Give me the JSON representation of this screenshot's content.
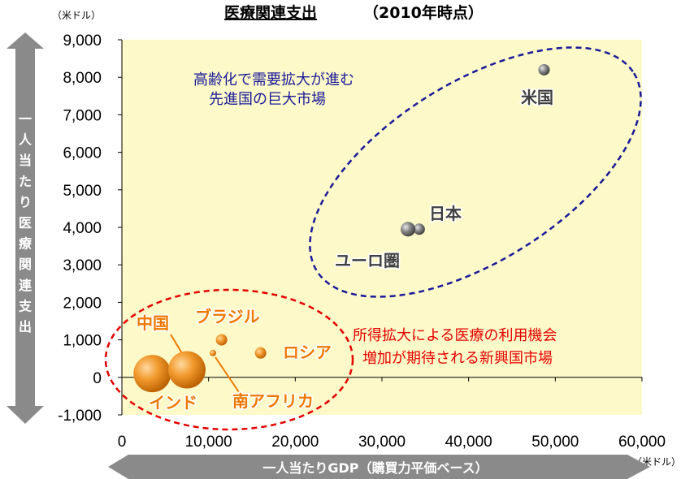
{
  "title": "医療関連支出",
  "title_suffix": "（2010年時点）",
  "y_unit": "（米ドル）",
  "x_unit": "（米ドル）",
  "y_axis_title": [
    "一",
    "人",
    "当",
    "た",
    "り",
    "医",
    "療",
    "関",
    "連",
    "支",
    "出"
  ],
  "x_axis_title": "一人当たりGDP（購買力平価ベース）",
  "annotations": {
    "developed_line1": "高齢化で需要拡大が進む",
    "developed_line2": "先進国の巨大市場",
    "emerging_line1": "所得拡大による医療の利用機会",
    "emerging_line2": "増加が期待される新興国市場"
  },
  "colors": {
    "plot_bg": "#fdf9c8",
    "emerging": "#e98a1b",
    "developed": "#707070",
    "ellipse_blue": "#1a1a9a",
    "ellipse_red": "#e60000",
    "axis_arrow": "#8a8a8a"
  },
  "chart_data": {
    "type": "scatter",
    "title": "医療関連支出（2010年時点）",
    "xlabel": "一人当たりGDP（購買力平価ベース）",
    "ylabel": "一人当たり医療関連支出",
    "xlim": [
      0,
      60000
    ],
    "ylim": [
      -1000,
      9000
    ],
    "x_ticks": [
      "0",
      "10,000",
      "20,000",
      "30,000",
      "40,000",
      "50,000",
      "60,000"
    ],
    "y_ticks": [
      "9,000",
      "8,000",
      "7,000",
      "6,000",
      "5,000",
      "4,000",
      "3,000",
      "2,000",
      "1,000",
      "0",
      "-1,000"
    ],
    "grid": false,
    "points": [
      {
        "label": "インド",
        "x": 3500,
        "y": 100,
        "size": "large",
        "group": "emerging"
      },
      {
        "label": "中国",
        "x": 7500,
        "y": 200,
        "size": "large",
        "group": "emerging"
      },
      {
        "label": "ブラジル",
        "x": 11500,
        "y": 1000,
        "size": "small",
        "group": "emerging"
      },
      {
        "label": "南アフリカ",
        "x": 10500,
        "y": 650,
        "size": "tiny",
        "group": "emerging"
      },
      {
        "label": "ロシア",
        "x": 16000,
        "y": 650,
        "size": "small",
        "group": "emerging"
      },
      {
        "label": "日本",
        "x": 34300,
        "y": 3950,
        "size": "small",
        "group": "developed"
      },
      {
        "label": "ユーロ圏",
        "x": 33000,
        "y": 3950,
        "size": "medium",
        "group": "developed"
      },
      {
        "label": "米国",
        "x": 48700,
        "y": 8200,
        "size": "small",
        "group": "developed"
      }
    ]
  }
}
